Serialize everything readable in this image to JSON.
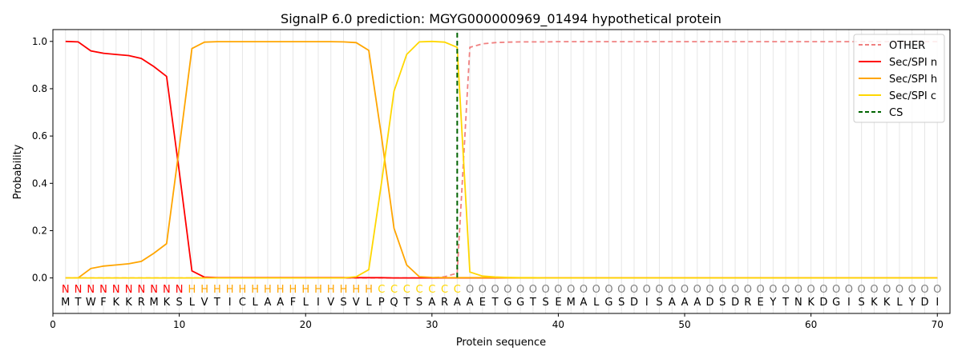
{
  "chart_data": {
    "type": "line",
    "title": "SignalP 6.0 prediction: MGYG000000969_01494 hypothetical protein",
    "xlabel": "Protein sequence",
    "ylabel": "Probability",
    "xlim": [
      0,
      71
    ],
    "ylim": [
      -0.15,
      1.05
    ],
    "xticks": [
      0,
      10,
      20,
      30,
      40,
      50,
      60,
      70
    ],
    "yticks": [
      "0.0",
      "0.2",
      "0.4",
      "0.6",
      "0.8",
      "1.0"
    ],
    "grid": "vertical lines at every sequence position",
    "legend_position": "top-right",
    "sequence": [
      "M",
      "T",
      "W",
      "F",
      "K",
      "K",
      "R",
      "M",
      "K",
      "S",
      "L",
      "V",
      "T",
      "I",
      "C",
      "L",
      "A",
      "A",
      "F",
      "L",
      "I",
      "V",
      "S",
      "V",
      "L",
      "P",
      "Q",
      "T",
      "S",
      "A",
      "R",
      "A",
      "A",
      "E",
      "T",
      "G",
      "G",
      "T",
      "S",
      "E",
      "M",
      "A",
      "L",
      "G",
      "S",
      "D",
      "I",
      "S",
      "A",
      "A",
      "A",
      "D",
      "S",
      "D",
      "R",
      "E",
      "Y",
      "T",
      "N",
      "K",
      "D",
      "G",
      "I",
      "S",
      "K",
      "K",
      "L",
      "Y",
      "D",
      "I"
    ],
    "labels": [
      "N",
      "N",
      "N",
      "N",
      "N",
      "N",
      "N",
      "N",
      "N",
      "N",
      "H",
      "H",
      "H",
      "H",
      "H",
      "H",
      "H",
      "H",
      "H",
      "H",
      "H",
      "H",
      "H",
      "H",
      "H",
      "C",
      "C",
      "C",
      "C",
      "C",
      "C",
      "C",
      "O",
      "O",
      "O",
      "O",
      "O",
      "O",
      "O",
      "O",
      "O",
      "O",
      "O",
      "O",
      "O",
      "O",
      "O",
      "O",
      "O",
      "O",
      "O",
      "O",
      "O",
      "O",
      "O",
      "O",
      "O",
      "O",
      "O",
      "O",
      "O",
      "O",
      "O",
      "O",
      "O",
      "O",
      "O",
      "O",
      "O",
      "O"
    ],
    "label_colors": {
      "N": "#ff0000",
      "H": "#ffa500",
      "C": "#ffd700",
      "O": "#808080"
    },
    "cs_position": 32,
    "series": [
      {
        "name": "OTHER",
        "color": "#f08080",
        "dash": "dashed",
        "values": [
          0,
          0,
          0,
          0,
          0,
          0,
          0,
          0,
          0,
          0,
          0,
          0,
          0,
          0,
          0,
          0,
          0,
          0,
          0,
          0,
          0,
          0,
          0,
          0,
          0,
          0,
          0,
          0,
          0,
          0,
          0.005,
          0.02,
          0.975,
          0.99,
          0.995,
          0.997,
          0.998,
          0.998,
          0.998,
          0.999,
          0.999,
          0.999,
          0.999,
          0.999,
          0.999,
          0.999,
          0.999,
          0.999,
          0.999,
          0.999,
          0.999,
          0.999,
          0.999,
          0.999,
          0.999,
          0.999,
          0.999,
          0.999,
          0.999,
          0.999,
          0.999,
          0.999,
          0.999,
          0.999,
          0.999,
          0.999,
          0.999,
          0.999,
          0.999,
          0.999
        ]
      },
      {
        "name": "Sec/SPI n",
        "color": "#ff0000",
        "dash": "solid",
        "values": [
          1.0,
          0.998,
          0.96,
          0.95,
          0.945,
          0.94,
          0.928,
          0.893,
          0.852,
          0.45,
          0.03,
          0.003,
          0.001,
          0.001,
          0.001,
          0.001,
          0.001,
          0.001,
          0.001,
          0.001,
          0.001,
          0.001,
          0.001,
          0.001,
          0.001,
          0.001,
          0,
          0,
          0,
          0,
          0,
          0,
          0,
          0,
          0,
          0,
          0,
          0,
          0,
          0,
          0,
          0,
          0,
          0,
          0,
          0,
          0,
          0,
          0,
          0,
          0,
          0,
          0,
          0,
          0,
          0,
          0,
          0,
          0,
          0,
          0,
          0,
          0,
          0,
          0,
          0,
          0,
          0,
          0,
          0
        ]
      },
      {
        "name": "Sec/SPI h",
        "color": "#ffa500",
        "dash": "solid",
        "values": [
          0,
          0,
          0.04,
          0.05,
          0.055,
          0.06,
          0.07,
          0.105,
          0.145,
          0.55,
          0.97,
          0.997,
          0.999,
          0.999,
          0.999,
          0.999,
          0.999,
          0.999,
          0.999,
          0.999,
          0.999,
          0.999,
          0.998,
          0.995,
          0.962,
          0.6,
          0.21,
          0.055,
          0.005,
          0.002,
          0.001,
          0.001,
          0.001,
          0.001,
          0.001,
          0,
          0,
          0,
          0,
          0,
          0,
          0,
          0,
          0,
          0,
          0,
          0,
          0,
          0,
          0,
          0,
          0,
          0,
          0,
          0,
          0,
          0,
          0,
          0,
          0,
          0,
          0,
          0,
          0,
          0,
          0,
          0,
          0,
          0,
          0
        ]
      },
      {
        "name": "Sec/SPI c",
        "color": "#ffd700",
        "dash": "solid",
        "values": [
          0,
          0,
          0,
          0,
          0,
          0,
          0,
          0,
          0,
          0,
          0,
          0,
          0,
          0,
          0,
          0,
          0,
          0,
          0,
          0,
          0,
          0,
          0,
          0.005,
          0.035,
          0.4,
          0.79,
          0.945,
          0.998,
          1.0,
          0.997,
          0.975,
          0.025,
          0.008,
          0.004,
          0.002,
          0.001,
          0.001,
          0,
          0,
          0,
          0,
          0,
          0,
          0,
          0,
          0,
          0,
          0,
          0,
          0,
          0,
          0,
          0,
          0,
          0,
          0,
          0,
          0,
          0,
          0,
          0,
          0,
          0,
          0,
          0,
          0,
          0,
          0,
          0
        ]
      },
      {
        "name": "CS",
        "color": "#006400",
        "dash": "dashed",
        "vertical_at": 32
      }
    ]
  }
}
